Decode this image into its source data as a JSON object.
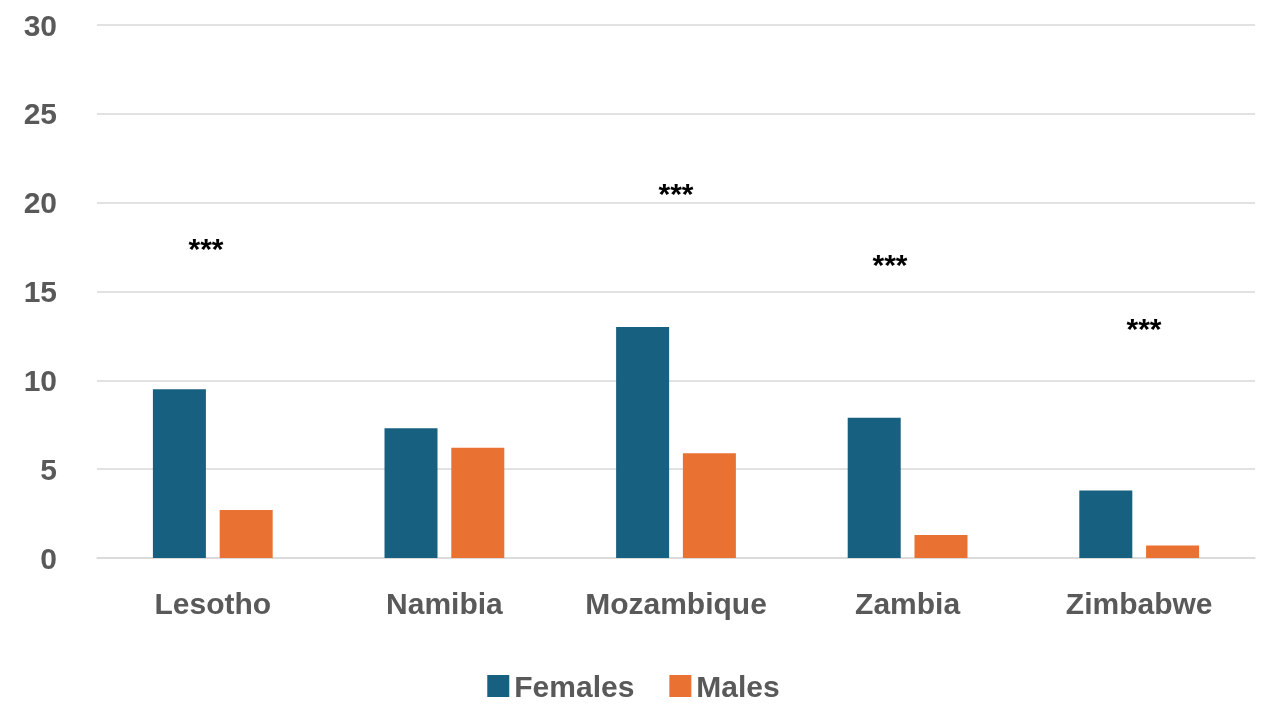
{
  "chart_data": {
    "type": "bar",
    "categories": [
      "Lesotho",
      "Namibia",
      "Mozambique",
      "Zambia",
      "Zimbabwe"
    ],
    "series": [
      {
        "name": "Females",
        "color": "#17607f",
        "values": [
          9.5,
          7.3,
          13,
          7.9,
          3.8
        ]
      },
      {
        "name": "Males",
        "color": "#e97132",
        "values": [
          2.7,
          6.2,
          5.9,
          1.3,
          0.7
        ]
      }
    ],
    "ylim": [
      0,
      30
    ],
    "yticks": [
      0,
      5,
      10,
      15,
      20,
      25,
      30
    ],
    "grid": "y",
    "legend": "bottom",
    "annotations": [
      "***",
      "***",
      "***",
      "***"
    ]
  }
}
